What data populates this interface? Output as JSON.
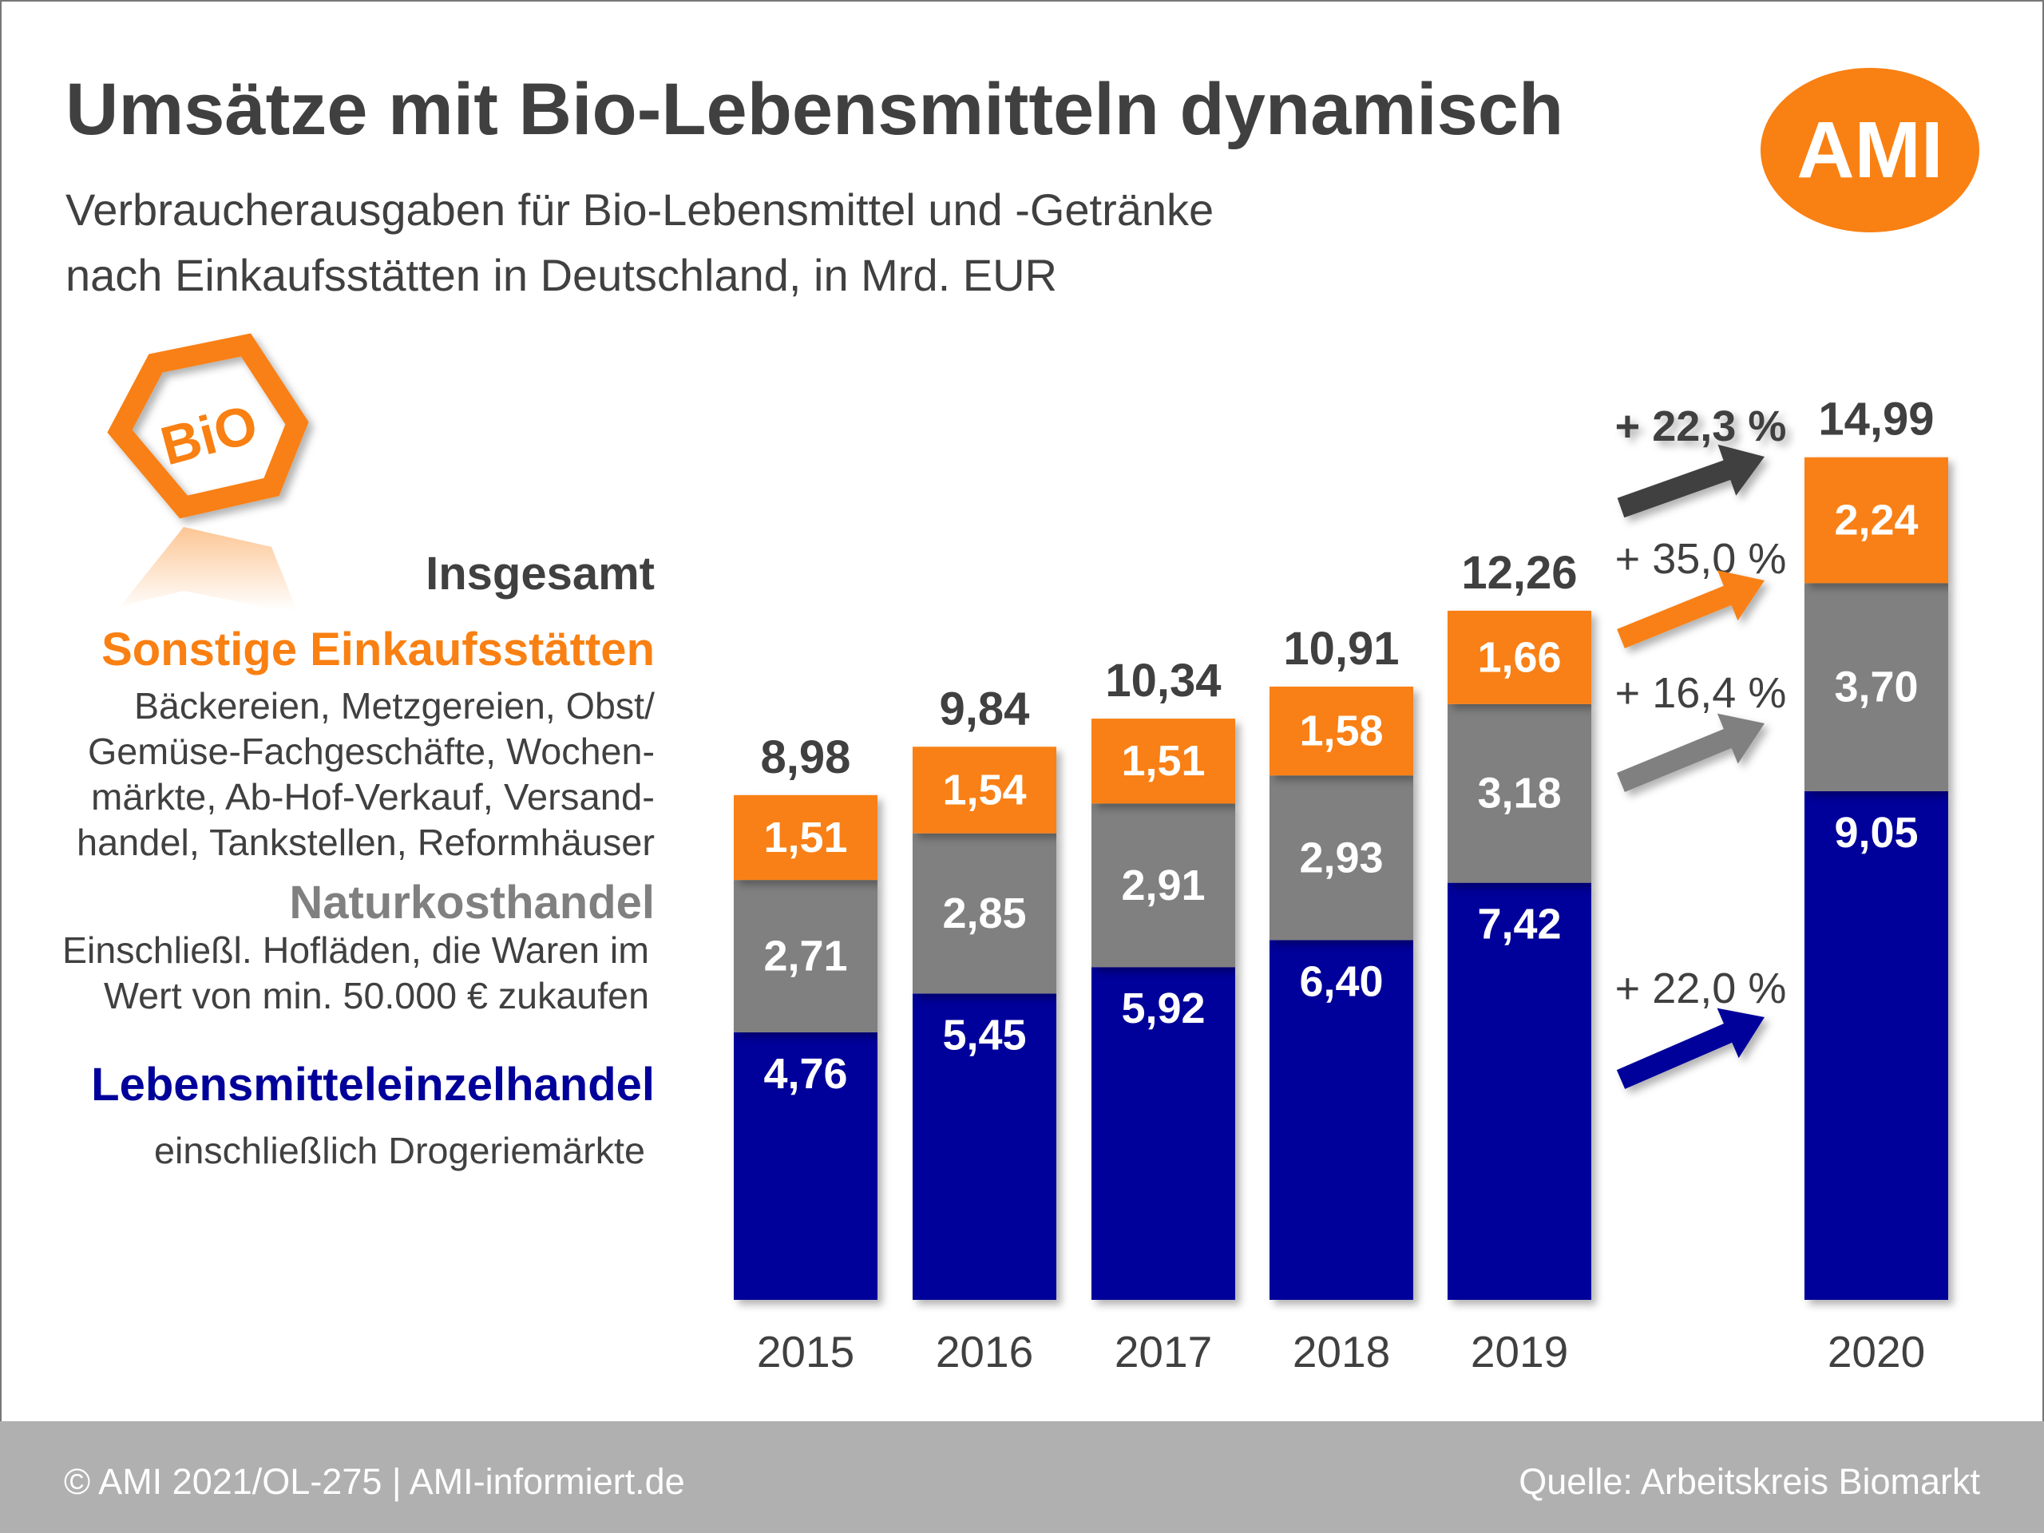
{
  "title": "Umsätze mit Bio-Lebensmitteln dynamisch",
  "subtitle_lines": [
    "Verbraucherausgaben für Bio-Lebensmittel  und -Getränke",
    "nach Einkaufsstätten in Deutschland, in Mrd. EUR"
  ],
  "logo": {
    "text": "AMI",
    "color": "#f98012"
  },
  "bio_logo": {
    "text": "BiO"
  },
  "legend": {
    "total": "Insgesamt",
    "other": {
      "label": "Sonstige Einkaufsstätten",
      "lines": [
        "Bäckereien, Metzgereien, Obst/",
        "Gemüse-Fachgeschäfte, Wochen-",
        "märkte, Ab-Hof-Verkauf, Versand-",
        "handel, Tankstellen, Reformhäuser"
      ]
    },
    "natural": {
      "label": "Naturkosthandel",
      "lines": [
        "Einschließl. Hofläden, die Waren im",
        "Wert von min. 50.000 € zukaufen"
      ]
    },
    "retail": {
      "label": "Lebensmitteleinzelhandel",
      "lines": [
        "einschließlich Drogeriemärkte"
      ]
    }
  },
  "colors": {
    "retail": "#00009a",
    "natural": "#808080",
    "other": "#f98012",
    "total": "#404040"
  },
  "chart_data": {
    "type": "bar",
    "stacked": true,
    "categories": [
      "2015",
      "2016",
      "2017",
      "2018",
      "2019",
      "2020"
    ],
    "series": [
      {
        "name": "Lebensmitteleinzelhandel",
        "values": [
          4.76,
          5.45,
          5.92,
          6.4,
          7.42,
          9.05
        ],
        "labels": [
          "4,76",
          "5,45",
          "5,92",
          "6,40",
          "7,42",
          "9,05"
        ]
      },
      {
        "name": "Naturkosthandel",
        "values": [
          2.71,
          2.85,
          2.91,
          2.93,
          3.18,
          3.7
        ],
        "labels": [
          "2,71",
          "2,85",
          "2,91",
          "2,93",
          "3,18",
          "3,70"
        ]
      },
      {
        "name": "Sonstige Einkaufsstätten",
        "values": [
          1.51,
          1.54,
          1.51,
          1.58,
          1.66,
          2.24
        ],
        "labels": [
          "1,51",
          "1,54",
          "1,51",
          "1,58",
          "1,66",
          "2,24"
        ]
      }
    ],
    "totals": [
      8.98,
      9.84,
      10.34,
      10.91,
      12.26,
      14.99
    ],
    "total_labels": [
      "8,98",
      "9,84",
      "10,34",
      "10,91",
      "12,26",
      "14,99"
    ],
    "changes": [
      {
        "series": "Insgesamt",
        "label": "+ 22,3 %"
      },
      {
        "series": "Sonstige Einkaufsstätten",
        "label": "+ 35,0 %"
      },
      {
        "series": "Naturkosthandel",
        "label": "+ 16,4 %"
      },
      {
        "series": "Lebensmitteleinzelhandel",
        "label": "+ 22,0 %"
      }
    ],
    "grid": false,
    "ylim": [
      0,
      15
    ]
  },
  "footer": {
    "left": "© AMI 2021/OL-275 | AMI-informiert.de",
    "right": "Quelle: Arbeitskreis Biomarkt"
  }
}
